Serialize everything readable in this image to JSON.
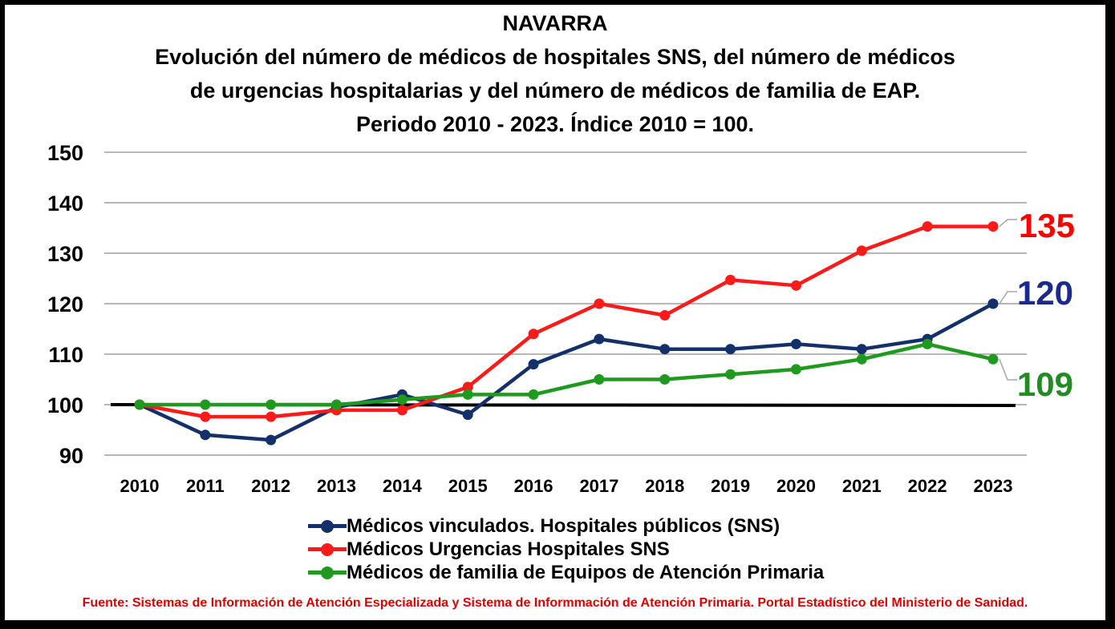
{
  "title": {
    "region": "NAVARRA",
    "line1": "Evolución del número de médicos de hospitales SNS,  del número de médicos",
    "line2": "de urgencias hospitalarias y del número de médicos de familia de EAP.",
    "line3": "Periodo 2010 - 2023. Índice 2010 = 100."
  },
  "source": "Fuente: Sistemas de Información de Atención Especializada y Sistema de Informmación de Atención Primaria. Portal Estadístico del Ministerio de Sanidad.",
  "chart_data": {
    "type": "line",
    "categories": [
      "2010",
      "2011",
      "2012",
      "2013",
      "2014",
      "2015",
      "2016",
      "2017",
      "2018",
      "2019",
      "2020",
      "2021",
      "2022",
      "2023"
    ],
    "ylim": [
      90,
      150
    ],
    "yticks": [
      "150",
      "140",
      "130",
      "120",
      "110",
      "100",
      "90"
    ],
    "grid": true,
    "reference_line": 100,
    "legend_position": "bottom",
    "series": [
      {
        "name": "Médicos vinculados. Hospitales públicos (SNS)",
        "color": "#14306b",
        "values": [
          100,
          94,
          93,
          99.5,
          102,
          98,
          108,
          113,
          111,
          111,
          112,
          111,
          113,
          120
        ],
        "end_label": "120",
        "end_label_color": "#1b2a8f"
      },
      {
        "name": "Médicos Urgencias Hospitales SNS",
        "color": "#ff1a1a",
        "values": [
          100,
          97.6,
          97.6,
          98.9,
          98.9,
          103.5,
          114,
          120,
          117.7,
          124.7,
          123.6,
          130.5,
          135.3,
          135.3
        ],
        "end_label": "135",
        "end_label_color": "#ff0000"
      },
      {
        "name": "Médicos de familia de Equipos de Atención Primaria",
        "color": "#1f9a1f",
        "values": [
          100,
          100,
          100,
          100,
          101,
          102,
          102,
          105,
          105,
          106,
          107,
          109,
          112,
          109
        ],
        "end_label": "109",
        "end_label_color": "#228b22"
      }
    ]
  }
}
